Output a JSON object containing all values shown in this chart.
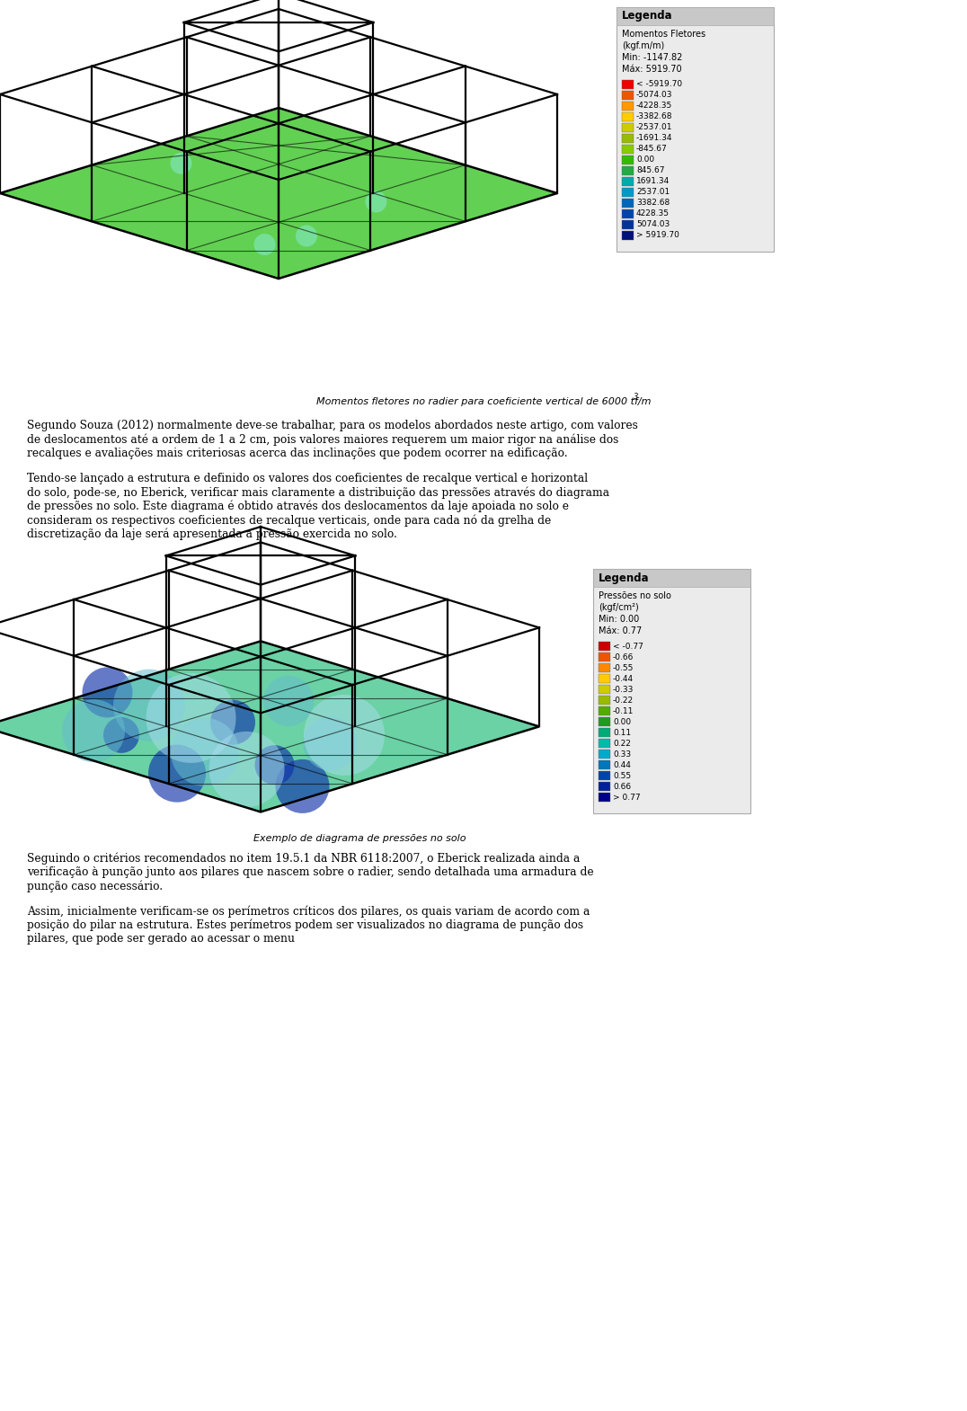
{
  "title_caption1": "Momentos fletores no radier para coeficiente vertical de 6000 tf/m",
  "title_caption1_super": "3",
  "title_caption2": "Exemplo de diagrama de pressões no solo",
  "legend1_title": "Legenda",
  "legend1_items": [
    {
      "color": "#EE0000",
      "label": "< -5919.70"
    },
    {
      "color": "#EE5500",
      "label": "-5074.03"
    },
    {
      "color": "#FF9900",
      "label": "-4228.35"
    },
    {
      "color": "#FFCC00",
      "label": "-3382.68"
    },
    {
      "color": "#CCCC00",
      "label": "-2537.01"
    },
    {
      "color": "#99BB00",
      "label": "-1691.34"
    },
    {
      "color": "#88CC00",
      "label": "-845.67"
    },
    {
      "color": "#33BB00",
      "label": "0.00"
    },
    {
      "color": "#22AA44",
      "label": "845.67"
    },
    {
      "color": "#00AAAA",
      "label": "1691.34"
    },
    {
      "color": "#0099CC",
      "label": "2537.01"
    },
    {
      "color": "#0066BB",
      "label": "3382.68"
    },
    {
      "color": "#0044AA",
      "label": "4228.35"
    },
    {
      "color": "#003399",
      "label": "5074.03"
    },
    {
      "color": "#001177",
      "label": "> 5919.70"
    }
  ],
  "legend1_subtitle": [
    "Momentos Fletores",
    "(kgf.m/m)",
    "Min: -1147.82",
    "Máx: 5919.70"
  ],
  "legend2_title": "Legenda",
  "legend2_items": [
    {
      "color": "#CC0000",
      "label": "< -0.77"
    },
    {
      "color": "#EE5500",
      "label": "-0.66"
    },
    {
      "color": "#FF8800",
      "label": "-0.55"
    },
    {
      "color": "#FFCC00",
      "label": "-0.44"
    },
    {
      "color": "#CCCC00",
      "label": "-0.33"
    },
    {
      "color": "#99BB00",
      "label": "-0.22"
    },
    {
      "color": "#55AA00",
      "label": "-0.11"
    },
    {
      "color": "#229922",
      "label": "0.00"
    },
    {
      "color": "#00AA77",
      "label": "0.11"
    },
    {
      "color": "#00BBAA",
      "label": "0.22"
    },
    {
      "color": "#00AACC",
      "label": "0.33"
    },
    {
      "color": "#0077BB",
      "label": "0.44"
    },
    {
      "color": "#0044AA",
      "label": "0.55"
    },
    {
      "color": "#002299",
      "label": "0.66"
    },
    {
      "color": "#000088",
      "label": "> 0.77"
    }
  ],
  "legend2_subtitle": [
    "Pressões no solo",
    "(kgf/cm²)",
    "Min: 0.00",
    "Máx: 0.77"
  ],
  "para1": "Segundo Souza (2012) normalmente deve-se trabalhar, para os modelos abordados neste artigo, com valores de deslocamentos até a ordem de 1 a 2 cm, pois valores maiores requerem um maior rigor na análise dos recalques e avaliações mais criteriosas acerca das inclinações que podem ocorrer na edificação.",
  "para2": "Tendo-se lançado a estrutura e definido os valores dos coeficientes de recalque vertical e horizontal do solo, pode-se, no Eberick, verificar mais claramente a distribuição das pressões através do diagrama de pressões no solo. Este diagrama é obtido através dos deslocamentos da laje apoiada no solo e consideram os respectivos coeficientes de recalque verticais, onde para cada nó da grelha de discretização da laje será apresentada a pressão exercida no solo.",
  "para3": "Seguindo o critérios recomendados no item 19.5.1 da NBR 6118:2007, o Eberick realizada ainda a verificação à punção junto aos pilares que nascem sobre o radier, sendo detalhada uma armadura de punção caso necessário.",
  "para4": "Assim, inicialmente verificam-se os perímetros críticos dos pilares, os quais variam de acordo com a posição do pilar na estrutura. Estes perímetros podem ser visualizados no diagrama de punção dos pilares, que pode ser gerado ao acessar o menu",
  "bg_color": "#FFFFFF",
  "text_color": "#000000"
}
